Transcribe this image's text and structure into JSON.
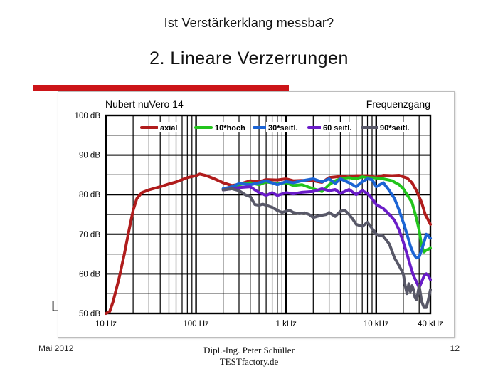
{
  "slide": {
    "title": "Ist Verstärkerklang messbar?",
    "heading": "2. Lineare Verzerrungen",
    "hidden_letter": "L"
  },
  "footer": {
    "date": "Mai 2012",
    "author_line1": "Dipl.-Ing. Peter Schüller",
    "author_line2": "TESTfactory.de",
    "page_number": "12"
  },
  "colors": {
    "accent_bar": "#cc1418",
    "axial": "#b01c1c",
    "10_hoch": "#22c41c",
    "30_seitl": "#1c64d4",
    "60_seitl": "#6a1cc8",
    "90_seitl": "#585868"
  },
  "chart_data": {
    "type": "line",
    "title": "Nubert nuVero 14",
    "subtitle": "Frequenzgang",
    "xscale": "log",
    "xlim": [
      10,
      40000
    ],
    "ylim": [
      50,
      100
    ],
    "x_ticks": [
      {
        "value": 10,
        "label": "10 Hz"
      },
      {
        "value": 100,
        "label": "100 Hz"
      },
      {
        "value": 1000,
        "label": "1 kHz"
      },
      {
        "value": 10000,
        "label": "10 kHz"
      },
      {
        "value": 40000,
        "label": "40 kHz"
      }
    ],
    "y_ticks": [
      {
        "value": 100,
        "label": "100 dB"
      },
      {
        "value": 90,
        "label": "90 dB"
      },
      {
        "value": 80,
        "label": "80 dB"
      },
      {
        "value": 70,
        "label": "70 dB"
      },
      {
        "value": 60,
        "label": "60 dB"
      },
      {
        "value": 50,
        "label": "50 dB"
      }
    ],
    "grid": true,
    "legend_position": "top",
    "series": [
      {
        "name": "axial",
        "color": "#b01c1c",
        "points": [
          [
            10,
            50
          ],
          [
            11,
            50.5
          ],
          [
            12,
            53
          ],
          [
            14,
            59
          ],
          [
            16,
            65
          ],
          [
            18,
            71
          ],
          [
            20,
            76
          ],
          [
            22,
            79
          ],
          [
            25,
            80.5
          ],
          [
            30,
            81.2
          ],
          [
            40,
            82
          ],
          [
            50,
            82.7
          ],
          [
            60,
            83.2
          ],
          [
            70,
            83.8
          ],
          [
            80,
            84.3
          ],
          [
            100,
            84.8
          ],
          [
            110,
            85.2
          ],
          [
            130,
            84.8
          ],
          [
            160,
            84
          ],
          [
            200,
            83
          ],
          [
            250,
            82.3
          ],
          [
            300,
            82.6
          ],
          [
            400,
            83.5
          ],
          [
            500,
            83.3
          ],
          [
            600,
            83.8
          ],
          [
            800,
            83.7
          ],
          [
            1000,
            84
          ],
          [
            1200,
            83.5
          ],
          [
            1500,
            83.6
          ],
          [
            2000,
            83.5
          ],
          [
            2500,
            83.1
          ],
          [
            3000,
            84.3
          ],
          [
            4000,
            84.6
          ],
          [
            5000,
            84.5
          ],
          [
            6000,
            84.8
          ],
          [
            8000,
            84.8
          ],
          [
            10000,
            84.4
          ],
          [
            12000,
            84.9
          ],
          [
            15000,
            84.8
          ],
          [
            18000,
            84.9
          ],
          [
            20000,
            84.5
          ],
          [
            22000,
            84.2
          ],
          [
            25000,
            83
          ],
          [
            28000,
            81
          ],
          [
            32000,
            78
          ],
          [
            35000,
            75
          ],
          [
            38000,
            73.5
          ],
          [
            40000,
            72.5
          ]
        ]
      },
      {
        "name": "10*hoch",
        "color": "#22c41c",
        "points": [
          [
            200,
            81.5
          ],
          [
            250,
            81.8
          ],
          [
            300,
            82.5
          ],
          [
            400,
            83
          ],
          [
            500,
            82.5
          ],
          [
            600,
            83.2
          ],
          [
            800,
            82.8
          ],
          [
            1000,
            83
          ],
          [
            1200,
            82.3
          ],
          [
            1500,
            82.5
          ],
          [
            2000,
            81.5
          ],
          [
            2500,
            80.8
          ],
          [
            3000,
            82.5
          ],
          [
            3500,
            83.5
          ],
          [
            4000,
            84
          ],
          [
            5000,
            84.3
          ],
          [
            6000,
            84
          ],
          [
            7000,
            84.5
          ],
          [
            8000,
            84.3
          ],
          [
            10000,
            84.2
          ],
          [
            12000,
            84
          ],
          [
            15000,
            83.5
          ],
          [
            18000,
            82.5
          ],
          [
            20000,
            81.5
          ],
          [
            22000,
            80
          ],
          [
            25000,
            78
          ],
          [
            28000,
            74
          ],
          [
            30000,
            71
          ],
          [
            32000,
            67
          ],
          [
            34000,
            65.5
          ],
          [
            36000,
            66
          ],
          [
            38000,
            66.2
          ],
          [
            40000,
            66.5
          ]
        ]
      },
      {
        "name": "30*seitl.",
        "color": "#1c64d4",
        "points": [
          [
            200,
            81.5
          ],
          [
            250,
            82
          ],
          [
            300,
            82.8
          ],
          [
            400,
            82.5
          ],
          [
            500,
            83
          ],
          [
            600,
            83.5
          ],
          [
            800,
            82.5
          ],
          [
            1000,
            83.3
          ],
          [
            1200,
            83
          ],
          [
            1500,
            83.5
          ],
          [
            2000,
            84
          ],
          [
            2500,
            83.2
          ],
          [
            3000,
            84
          ],
          [
            3500,
            82.8
          ],
          [
            4000,
            84
          ],
          [
            5000,
            83
          ],
          [
            6000,
            82
          ],
          [
            7000,
            83.3
          ],
          [
            8000,
            84
          ],
          [
            9000,
            83.8
          ],
          [
            10000,
            82
          ],
          [
            12000,
            83
          ],
          [
            14000,
            81
          ],
          [
            16000,
            79
          ],
          [
            18000,
            76
          ],
          [
            20000,
            73
          ],
          [
            22000,
            70
          ],
          [
            24000,
            67
          ],
          [
            26000,
            65
          ],
          [
            28000,
            64
          ],
          [
            30000,
            64.3
          ],
          [
            32000,
            66
          ],
          [
            34000,
            68
          ],
          [
            36000,
            70
          ],
          [
            38000,
            69.5
          ],
          [
            40000,
            69
          ]
        ]
      },
      {
        "name": "60  seitl.",
        "color": "#6a1cc8",
        "points": [
          [
            200,
            81.2
          ],
          [
            250,
            81.5
          ],
          [
            300,
            81.8
          ],
          [
            400,
            82
          ],
          [
            500,
            80.5
          ],
          [
            600,
            79.8
          ],
          [
            700,
            80.5
          ],
          [
            800,
            79.8
          ],
          [
            1000,
            80.5
          ],
          [
            1200,
            80.2
          ],
          [
            1500,
            80.6
          ],
          [
            2000,
            80.8
          ],
          [
            2500,
            81.5
          ],
          [
            3000,
            81
          ],
          [
            3500,
            81.3
          ],
          [
            4000,
            80.3
          ],
          [
            5000,
            81.3
          ],
          [
            6000,
            80
          ],
          [
            7000,
            81
          ],
          [
            8000,
            80.3
          ],
          [
            9000,
            79
          ],
          [
            10000,
            77.5
          ],
          [
            12000,
            76.5
          ],
          [
            14000,
            75
          ],
          [
            16000,
            73.5
          ],
          [
            18000,
            71
          ],
          [
            20000,
            68
          ],
          [
            22000,
            65
          ],
          [
            24000,
            62
          ],
          [
            26000,
            59.5
          ],
          [
            28000,
            58
          ],
          [
            30000,
            56.5
          ],
          [
            32000,
            58
          ],
          [
            34000,
            59.5
          ],
          [
            36000,
            60
          ],
          [
            38000,
            59.5
          ],
          [
            40000,
            58.5
          ]
        ]
      },
      {
        "name": "90*seitl.",
        "color": "#585868",
        "points": [
          [
            200,
            81.2
          ],
          [
            250,
            81.5
          ],
          [
            300,
            81
          ],
          [
            350,
            80
          ],
          [
            400,
            79.5
          ],
          [
            450,
            77.5
          ],
          [
            500,
            77.3
          ],
          [
            550,
            77.6
          ],
          [
            600,
            77.3
          ],
          [
            700,
            76.8
          ],
          [
            800,
            76
          ],
          [
            900,
            75.5
          ],
          [
            1000,
            75.8
          ],
          [
            1100,
            76
          ],
          [
            1200,
            75.5
          ],
          [
            1400,
            75.2
          ],
          [
            1600,
            75.4
          ],
          [
            1800,
            75
          ],
          [
            2000,
            74.2
          ],
          [
            2200,
            74.5
          ],
          [
            2500,
            74.8
          ],
          [
            2800,
            75
          ],
          [
            3000,
            75.5
          ],
          [
            3500,
            74.5
          ],
          [
            4000,
            75.8
          ],
          [
            4500,
            76
          ],
          [
            5000,
            75
          ],
          [
            5500,
            73.8
          ],
          [
            6000,
            72.5
          ],
          [
            7000,
            72
          ],
          [
            8000,
            73
          ],
          [
            9000,
            71.5
          ],
          [
            10000,
            70
          ],
          [
            12000,
            69.5
          ],
          [
            14000,
            67.5
          ],
          [
            16000,
            64
          ],
          [
            18000,
            62
          ],
          [
            20000,
            60
          ],
          [
            21000,
            57
          ],
          [
            22000,
            55
          ],
          [
            23000,
            57.5
          ],
          [
            24000,
            55.5
          ],
          [
            25000,
            57
          ],
          [
            26000,
            56
          ],
          [
            27000,
            54
          ],
          [
            28000,
            53.5
          ],
          [
            29000,
            55
          ],
          [
            30000,
            57
          ],
          [
            31000,
            55
          ],
          [
            32000,
            53
          ],
          [
            34000,
            51.5
          ],
          [
            36000,
            51.5
          ],
          [
            38000,
            53.5
          ],
          [
            40000,
            56
          ]
        ]
      }
    ]
  }
}
